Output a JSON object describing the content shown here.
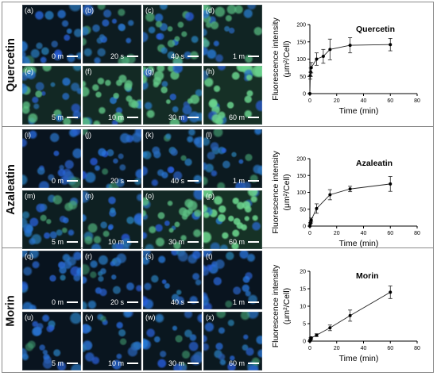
{
  "rows": [
    {
      "compound": "Quercetin",
      "panels": [
        {
          "label": "(a)",
          "time": "0 m",
          "green": 0.08
        },
        {
          "label": "(b)",
          "time": "20 s",
          "green": 0.25
        },
        {
          "label": "(c)",
          "time": "40 s",
          "green": 0.4
        },
        {
          "label": "(d)",
          "time": "1 m",
          "green": 0.45
        },
        {
          "label": "(e)",
          "time": "5 m",
          "green": 0.55
        },
        {
          "label": "(f)",
          "time": "10 m",
          "green": 0.6
        },
        {
          "label": "(g)",
          "time": "30 m",
          "green": 0.65
        },
        {
          "label": "(h)",
          "time": "60 m",
          "green": 0.75
        }
      ]
    },
    {
      "compound": "Azaleatin",
      "panels": [
        {
          "label": "(i)",
          "time": "0 m",
          "green": 0.05
        },
        {
          "label": "(j)",
          "time": "20 s",
          "green": 0.12
        },
        {
          "label": "(k)",
          "time": "40 s",
          "green": 0.18
        },
        {
          "label": "(l)",
          "time": "1 m",
          "green": 0.2
        },
        {
          "label": "(m)",
          "time": "5 m",
          "green": 0.3
        },
        {
          "label": "(n)",
          "time": "10 m",
          "green": 0.35
        },
        {
          "label": "(o)",
          "time": "30 m",
          "green": 0.55
        },
        {
          "label": "(p)",
          "time": "60 m",
          "green": 0.8
        }
      ]
    },
    {
      "compound": "Morin",
      "panels": [
        {
          "label": "(q)",
          "time": "0 m",
          "green": 0.02
        },
        {
          "label": "(r)",
          "time": "20 s",
          "green": 0.03
        },
        {
          "label": "(s)",
          "time": "40 s",
          "green": 0.04
        },
        {
          "label": "(t)",
          "time": "1 m",
          "green": 0.05
        },
        {
          "label": "(u)",
          "time": "5 m",
          "green": 0.06
        },
        {
          "label": "(v)",
          "time": "10 m",
          "green": 0.08
        },
        {
          "label": "(w)",
          "time": "30 m",
          "green": 0.12
        },
        {
          "label": "(x)",
          "time": "60 m",
          "green": 0.18
        }
      ]
    }
  ],
  "chart_data": [
    {
      "type": "line",
      "title": "Quercetin",
      "xlabel": "Time (min)",
      "ylabel_line1": "Fluorescence intensity",
      "ylabel_line2": "(μm²/Cell)",
      "xlim": [
        0,
        80
      ],
      "ylim": [
        0,
        200
      ],
      "xticks": [
        0,
        20,
        40,
        60,
        80
      ],
      "yticks": [
        0,
        50,
        100,
        150,
        200
      ],
      "grid": false,
      "series": [
        {
          "x": [
            0,
            0.33,
            0.67,
            1,
            5,
            10,
            15,
            30,
            60
          ],
          "y": [
            0,
            52,
            62,
            75,
            100,
            108,
            128,
            140,
            142
          ],
          "err": [
            0,
            10,
            12,
            15,
            18,
            20,
            30,
            22,
            18
          ]
        }
      ]
    },
    {
      "type": "line",
      "title": "Azaleatin",
      "xlabel": "Time (min)",
      "ylabel_line1": "Fluorescence intensity",
      "ylabel_line2": "(μm²/Cell)",
      "xlim": [
        0,
        80
      ],
      "ylim": [
        0,
        200
      ],
      "xticks": [
        0,
        20,
        40,
        60,
        80
      ],
      "yticks": [
        0,
        50,
        100,
        150,
        200
      ],
      "grid": false,
      "series": [
        {
          "x": [
            0,
            0.33,
            0.67,
            1,
            5,
            15,
            30,
            60
          ],
          "y": [
            0,
            8,
            12,
            18,
            52,
            93,
            110,
            125
          ],
          "err": [
            0,
            3,
            4,
            6,
            14,
            15,
            8,
            22
          ]
        }
      ]
    },
    {
      "type": "line",
      "title": "Morin",
      "xlabel": "Time (min)",
      "ylabel_line1": "Fluorescence intensity",
      "ylabel_line2": "(μm²/Cell)",
      "xlim": [
        0,
        80
      ],
      "ylim": [
        0,
        20
      ],
      "xticks": [
        0,
        20,
        40,
        60,
        80
      ],
      "yticks": [
        0,
        5,
        10,
        15,
        20
      ],
      "grid": false,
      "series": [
        {
          "x": [
            0,
            0.33,
            0.67,
            1,
            5,
            15,
            30,
            60
          ],
          "y": [
            0,
            0.4,
            0.7,
            0.9,
            1.7,
            3.8,
            7.3,
            14
          ],
          "err": [
            0,
            0.2,
            0.3,
            0.3,
            0.4,
            0.8,
            1.6,
            1.8
          ]
        }
      ]
    }
  ]
}
